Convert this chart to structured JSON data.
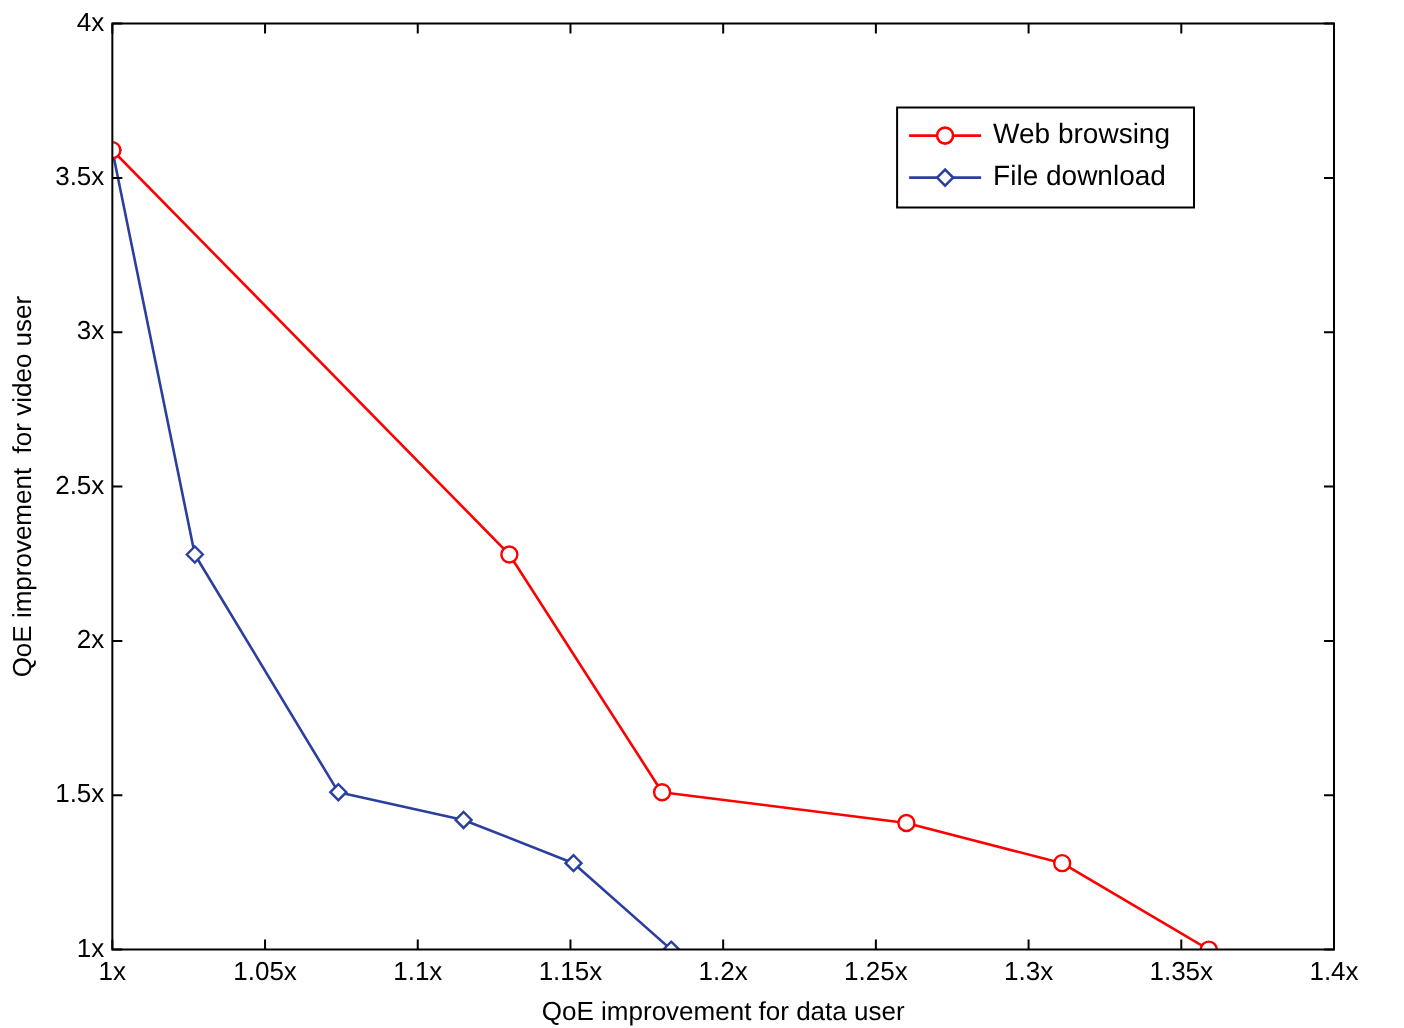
{
  "chart_data": {
    "type": "line",
    "xlabel": "QoE improvement for data user",
    "ylabel": "QoE improvement  for video user",
    "xlim": [
      1,
      1.4
    ],
    "xticks": [
      {
        "value": 1,
        "label": "1x"
      },
      {
        "value": 1.05,
        "label": "1.05x"
      },
      {
        "value": 1.1,
        "label": "1.1x"
      },
      {
        "value": 1.15,
        "label": "1.15x"
      },
      {
        "value": 1.2,
        "label": "1.2x"
      },
      {
        "value": 1.25,
        "label": "1.25x"
      },
      {
        "value": 1.3,
        "label": "1.3x"
      },
      {
        "value": 1.35,
        "label": "1.35x"
      },
      {
        "value": 1.4,
        "label": "1.4x"
      }
    ],
    "ylim": [
      1,
      4
    ],
    "yticks": [
      {
        "value": 1,
        "label": "1x"
      },
      {
        "value": 1.5,
        "label": "1.5x"
      },
      {
        "value": 2,
        "label": "2x"
      },
      {
        "value": 2.5,
        "label": "2.5x"
      },
      {
        "value": 3,
        "label": "3x"
      },
      {
        "value": 3.5,
        "label": "3.5x"
      },
      {
        "value": 4,
        "label": "4x"
      }
    ],
    "legend": "top right",
    "grid": false,
    "line_style": "solid",
    "series": [
      {
        "name": "Web browsing",
        "color": "#ff0000",
        "marker": "circle",
        "x": [
          1,
          1.13,
          1.18,
          1.26,
          1.311,
          1.359
        ],
        "values": [
          3.59,
          2.28,
          1.51,
          1.41,
          1.28,
          1.0
        ]
      },
      {
        "name": "File download",
        "color": "#2b3f9e",
        "marker": "diamond",
        "x": [
          1,
          1.027,
          1.074,
          1.115,
          1.151,
          1.183
        ],
        "values": [
          3.59,
          2.28,
          1.51,
          1.42,
          1.28,
          1.0
        ]
      }
    ]
  }
}
